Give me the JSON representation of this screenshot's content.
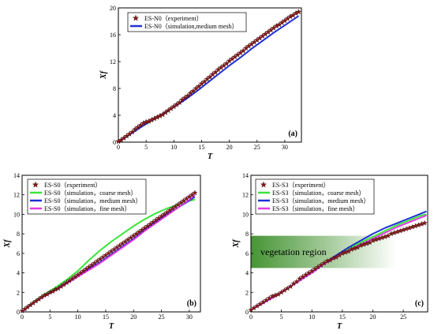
{
  "colors": {
    "experiment": "#8b1a1a",
    "medium": "#1f2fd6",
    "coarse": "#39e639",
    "fine": "#e23be2",
    "vegetation": "#3d8f2a"
  },
  "chart_data": [
    {
      "type": "line",
      "panel_label": "(a)",
      "xlabel": "T",
      "ylabel": "Xf",
      "xlim": [
        0,
        33
      ],
      "ylim": [
        0,
        20
      ],
      "xticks": [
        "0",
        "5",
        "10",
        "15",
        "20",
        "25",
        "30"
      ],
      "yticks": [
        "0",
        "4",
        "8",
        "12",
        "16",
        "20"
      ],
      "legend_position": "top-left",
      "series": [
        {
          "name": "ES-N0（experiment）",
          "style": "markers",
          "x": [
            0,
            0.5,
            1,
            1.5,
            2,
            2.5,
            3,
            3.5,
            4,
            4.5,
            5,
            5.5,
            6,
            6.5,
            7,
            7.5,
            8,
            8.5,
            9,
            9.5,
            10,
            10.5,
            11,
            11.5,
            12,
            12.5,
            13,
            13.5,
            14,
            14.5,
            15,
            15.5,
            16,
            16.5,
            17,
            17.5,
            18,
            18.5,
            19,
            19.5,
            20,
            20.5,
            21,
            21.5,
            22,
            22.5,
            23,
            23.5,
            24,
            24.5,
            25,
            25.5,
            26,
            26.5,
            27,
            27.5,
            28,
            28.5,
            29,
            29.5,
            30,
            30.5,
            31,
            31.5,
            32,
            32.5
          ],
          "y": [
            0.1,
            0.3,
            0.6,
            0.9,
            1.2,
            1.5,
            1.9,
            2.2,
            2.5,
            2.8,
            3.0,
            3.1,
            3.3,
            3.5,
            3.7,
            3.9,
            4.1,
            4.4,
            4.7,
            5.0,
            5.3,
            5.6,
            5.9,
            6.3,
            6.6,
            6.9,
            7.3,
            7.6,
            8.0,
            8.3,
            8.7,
            9.0,
            9.4,
            9.7,
            10.1,
            10.4,
            10.8,
            11.1,
            11.4,
            11.7,
            12.1,
            12.4,
            12.7,
            13.0,
            13.3,
            13.6,
            14.0,
            14.3,
            14.6,
            14.9,
            15.2,
            15.5,
            15.8,
            16.1,
            16.4,
            16.7,
            17.0,
            17.3,
            17.5,
            17.8,
            18.1,
            18.4,
            18.7,
            18.9,
            19.2,
            19.4
          ]
        },
        {
          "name": "ES-N0（simulation,medium mesh）",
          "style": "line",
          "x": [
            0,
            2,
            4,
            6,
            8,
            10,
            12,
            14,
            16,
            18,
            20,
            22,
            24,
            26,
            28,
            30,
            32.5
          ],
          "y": [
            0,
            1.1,
            2.2,
            3.2,
            4.2,
            5.2,
            6.3,
            7.5,
            8.8,
            10.1,
            11.4,
            12.6,
            13.9,
            15.1,
            16.3,
            17.4,
            18.8
          ]
        }
      ]
    },
    {
      "type": "line",
      "panel_label": "(b)",
      "xlabel": "T",
      "ylabel": "Xf",
      "xlim": [
        0,
        32
      ],
      "ylim": [
        0,
        14
      ],
      "xticks": [
        "0",
        "5",
        "10",
        "15",
        "20",
        "25",
        "30"
      ],
      "yticks": [
        "0",
        "2",
        "4",
        "6",
        "8",
        "10",
        "12",
        "14"
      ],
      "legend_position": "top-left",
      "series": [
        {
          "name": "ES-S0（experiment）",
          "style": "markers",
          "x": [
            0,
            0.5,
            1,
            1.5,
            2,
            2.5,
            3,
            3.5,
            4,
            4.5,
            5,
            5.5,
            6,
            6.5,
            7,
            7.5,
            8,
            8.5,
            9,
            9.5,
            10,
            10.5,
            11,
            11.5,
            12,
            12.5,
            13,
            13.5,
            14,
            14.5,
            15,
            15.5,
            16,
            16.5,
            17,
            17.5,
            18,
            18.5,
            19,
            19.5,
            20,
            20.5,
            21,
            21.5,
            22,
            22.5,
            23,
            23.5,
            24,
            24.5,
            25,
            25.5,
            26,
            26.5,
            27,
            27.5,
            28,
            28.5,
            29,
            29.5,
            30,
            30.5,
            31
          ],
          "y": [
            0.1,
            0.3,
            0.5,
            0.7,
            0.9,
            1.1,
            1.3,
            1.5,
            1.7,
            1.8,
            2.0,
            2.1,
            2.3,
            2.4,
            2.6,
            2.8,
            3.0,
            3.2,
            3.4,
            3.6,
            3.8,
            4.0,
            4.2,
            4.4,
            4.6,
            4.8,
            5.0,
            5.2,
            5.4,
            5.6,
            5.8,
            6.0,
            6.2,
            6.4,
            6.6,
            6.8,
            7.0,
            7.2,
            7.4,
            7.6,
            7.8,
            8.0,
            8.2,
            8.4,
            8.6,
            8.8,
            9.0,
            9.2,
            9.4,
            9.6,
            9.8,
            10.0,
            10.2,
            10.4,
            10.6,
            10.8,
            11.0,
            11.2,
            11.4,
            11.6,
            11.8,
            12.0,
            12.2
          ]
        },
        {
          "name": "ES-S0（simulation，coarse mesh）",
          "style": "line",
          "x": [
            0,
            2,
            4,
            6,
            8,
            10,
            12,
            14,
            16,
            18,
            20,
            22,
            24,
            26,
            28,
            30,
            31
          ],
          "y": [
            0,
            1.0,
            1.8,
            2.5,
            3.3,
            4.2,
            5.3,
            6.3,
            7.2,
            8.0,
            8.8,
            9.5,
            10.1,
            10.6,
            11.0,
            11.4,
            11.5
          ]
        },
        {
          "name": "ES-S0（simulation，medium mesh）",
          "style": "line",
          "x": [
            0,
            2,
            4,
            6,
            8,
            10,
            12,
            14,
            16,
            18,
            20,
            22,
            24,
            26,
            28,
            30,
            31
          ],
          "y": [
            0,
            0.9,
            1.6,
            2.3,
            3.0,
            3.7,
            4.4,
            5.1,
            5.9,
            6.7,
            7.5,
            8.4,
            9.2,
            10.0,
            10.7,
            11.4,
            11.8
          ]
        },
        {
          "name": "ES-S0（simulation，fine mesh）",
          "style": "line",
          "x": [
            0,
            2,
            4,
            6,
            8,
            10,
            12,
            14,
            16,
            18,
            20,
            22,
            24,
            26,
            28,
            30,
            31
          ],
          "y": [
            0,
            0.9,
            1.6,
            2.2,
            2.9,
            3.6,
            4.3,
            5.0,
            5.8,
            6.6,
            7.4,
            8.3,
            9.1,
            9.9,
            10.7,
            11.5,
            12.0
          ]
        }
      ]
    },
    {
      "type": "line",
      "panel_label": "(c)",
      "xlabel": "T",
      "ylabel": "Xf",
      "xlim": [
        0,
        29
      ],
      "ylim": [
        0,
        14
      ],
      "xticks": [
        "0",
        "5",
        "10",
        "15",
        "20",
        "25"
      ],
      "yticks": [
        "0",
        "2",
        "4",
        "6",
        "8",
        "10",
        "12",
        "14"
      ],
      "legend_position": "top-left",
      "annotation": "vegetation region",
      "vegetation_band": {
        "y_range": [
          4.5,
          7.8
        ]
      },
      "series": [
        {
          "name": "ES-S3（experiment）",
          "style": "markers",
          "x": [
            0,
            0.5,
            1,
            1.5,
            2,
            2.5,
            3,
            3.5,
            4,
            4.5,
            5,
            5.5,
            6,
            6.5,
            7,
            7.5,
            8,
            8.5,
            9,
            9.5,
            10,
            10.5,
            11,
            11.5,
            12,
            12.5,
            13,
            13.5,
            14,
            14.5,
            15,
            15.5,
            16,
            16.5,
            17,
            17.5,
            18,
            18.5,
            19,
            19.5,
            20,
            20.5,
            21,
            21.5,
            22,
            22.5,
            23,
            23.5,
            24,
            24.5,
            25,
            25.5,
            26,
            26.5,
            27,
            27.5,
            28,
            28.5
          ],
          "y": [
            0.2,
            0.4,
            0.6,
            0.8,
            1.0,
            1.2,
            1.4,
            1.6,
            1.7,
            1.8,
            2.0,
            2.2,
            2.4,
            2.6,
            2.9,
            3.1,
            3.4,
            3.6,
            3.8,
            4.0,
            4.2,
            4.4,
            4.6,
            4.8,
            5.0,
            5.2,
            5.3,
            5.5,
            5.6,
            5.8,
            6.0,
            6.1,
            6.2,
            6.4,
            6.5,
            6.6,
            6.8,
            6.9,
            7.0,
            7.1,
            7.3,
            7.4,
            7.5,
            7.6,
            7.7,
            7.8,
            8.0,
            8.1,
            8.2,
            8.3,
            8.4,
            8.5,
            8.6,
            8.7,
            8.8,
            8.9,
            9.0,
            9.1
          ]
        },
        {
          "name": "ES-S3（simulation，coarse mesh）",
          "style": "line",
          "x": [
            0,
            2,
            4,
            6,
            8,
            10,
            12,
            14,
            16,
            18,
            20,
            22,
            24,
            26,
            28,
            28.8
          ],
          "y": [
            0.2,
            0.9,
            1.6,
            2.4,
            3.2,
            4.0,
            4.9,
            5.8,
            6.5,
            7.1,
            7.7,
            8.3,
            8.9,
            9.4,
            9.9,
            10.0
          ]
        },
        {
          "name": "ES-S3（simulation，medium mesh）",
          "style": "line",
          "x": [
            0,
            2,
            4,
            6,
            8,
            10,
            12,
            14,
            16,
            18,
            20,
            22,
            24,
            26,
            28,
            28.8
          ],
          "y": [
            0.2,
            0.9,
            1.6,
            2.4,
            3.2,
            4.0,
            4.9,
            5.8,
            6.6,
            7.3,
            8.0,
            8.6,
            9.1,
            9.6,
            10.1,
            10.3
          ]
        },
        {
          "name": "ES-S3（simulation，fine mesh）",
          "style": "line",
          "x": [
            0,
            2,
            4,
            6,
            8,
            10,
            12,
            14,
            16,
            18,
            20,
            22,
            24,
            26,
            28,
            28.8
          ],
          "y": [
            0.2,
            0.9,
            1.6,
            2.4,
            3.2,
            4.0,
            4.9,
            5.6,
            6.3,
            6.9,
            7.5,
            8.1,
            8.7,
            9.2,
            9.7,
            9.9
          ]
        }
      ]
    }
  ]
}
